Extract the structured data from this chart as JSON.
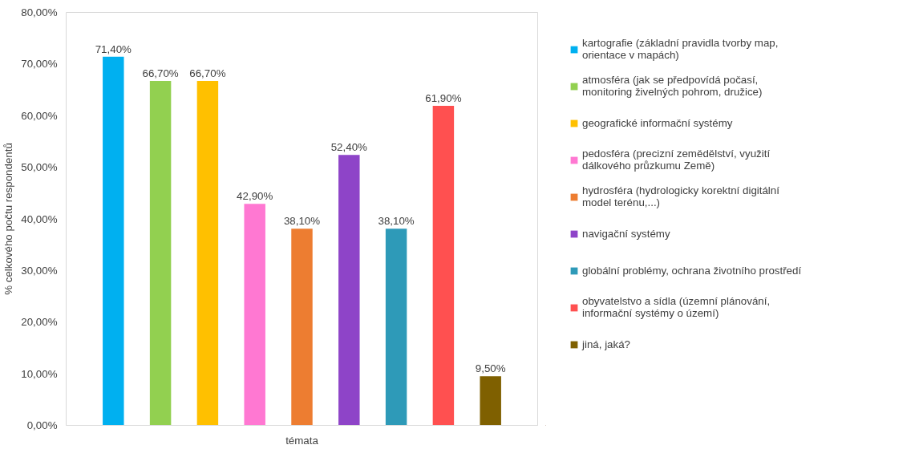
{
  "chart_data": {
    "type": "bar",
    "categories": [
      "témata"
    ],
    "ylabel": "% celkového počtu respondentů",
    "ylim": [
      0,
      80
    ],
    "yticks": [
      {
        "value": 0,
        "label": "0,00%"
      },
      {
        "value": 10,
        "label": "10,00%"
      },
      {
        "value": 20,
        "label": "20,00%"
      },
      {
        "value": 30,
        "label": "30,00%"
      },
      {
        "value": 40,
        "label": "40,00%"
      },
      {
        "value": 50,
        "label": "50,00%"
      },
      {
        "value": 60,
        "label": "60,00%"
      },
      {
        "value": 70,
        "label": "70,00%"
      },
      {
        "value": 80,
        "label": "80,00%"
      }
    ],
    "grid": false,
    "legend": "right",
    "series": [
      {
        "name": "kartografie (základní pravidla tvorby map, orientace v mapách)",
        "color": "#00b0f0",
        "values": [
          71.4
        ],
        "value_labels": [
          "71,40%"
        ]
      },
      {
        "name": "atmosféra (jak se předpovídá počasí, monitoring živelných pohrom, družice)",
        "color": "#92d050",
        "values": [
          66.7
        ],
        "value_labels": [
          "66,70%"
        ]
      },
      {
        "name": "geografické informační systémy",
        "color": "#ffc000",
        "values": [
          66.7
        ],
        "value_labels": [
          "66,70%"
        ]
      },
      {
        "name": "pedosféra (precizní zemědělství, využití dálkového průzkumu Země)",
        "color": "#ff78d2",
        "values": [
          42.9
        ],
        "value_labels": [
          "42,90%"
        ]
      },
      {
        "name": "hydrosféra (hydrologicky korektní digitální model terénu,...)",
        "color": "#ed7d31",
        "values": [
          38.1
        ],
        "value_labels": [
          "38,10%"
        ]
      },
      {
        "name": "navigační systémy",
        "color": "#8e44c8",
        "values": [
          52.4
        ],
        "value_labels": [
          "52,40%"
        ]
      },
      {
        "name": "globální problémy, ochrana životního prostředí",
        "color": "#2e9ab8",
        "values": [
          38.1
        ],
        "value_labels": [
          "38,10%"
        ]
      },
      {
        "name": "obyvatelstvo a sídla (územní plánování, informační systémy o území)",
        "color": "#ff5050",
        "values": [
          61.9
        ],
        "value_labels": [
          "61,90%"
        ]
      },
      {
        "name": "jiná, jaká?",
        "color": "#7f6000",
        "values": [
          9.5
        ],
        "value_labels": [
          "9,50%"
        ]
      }
    ]
  }
}
